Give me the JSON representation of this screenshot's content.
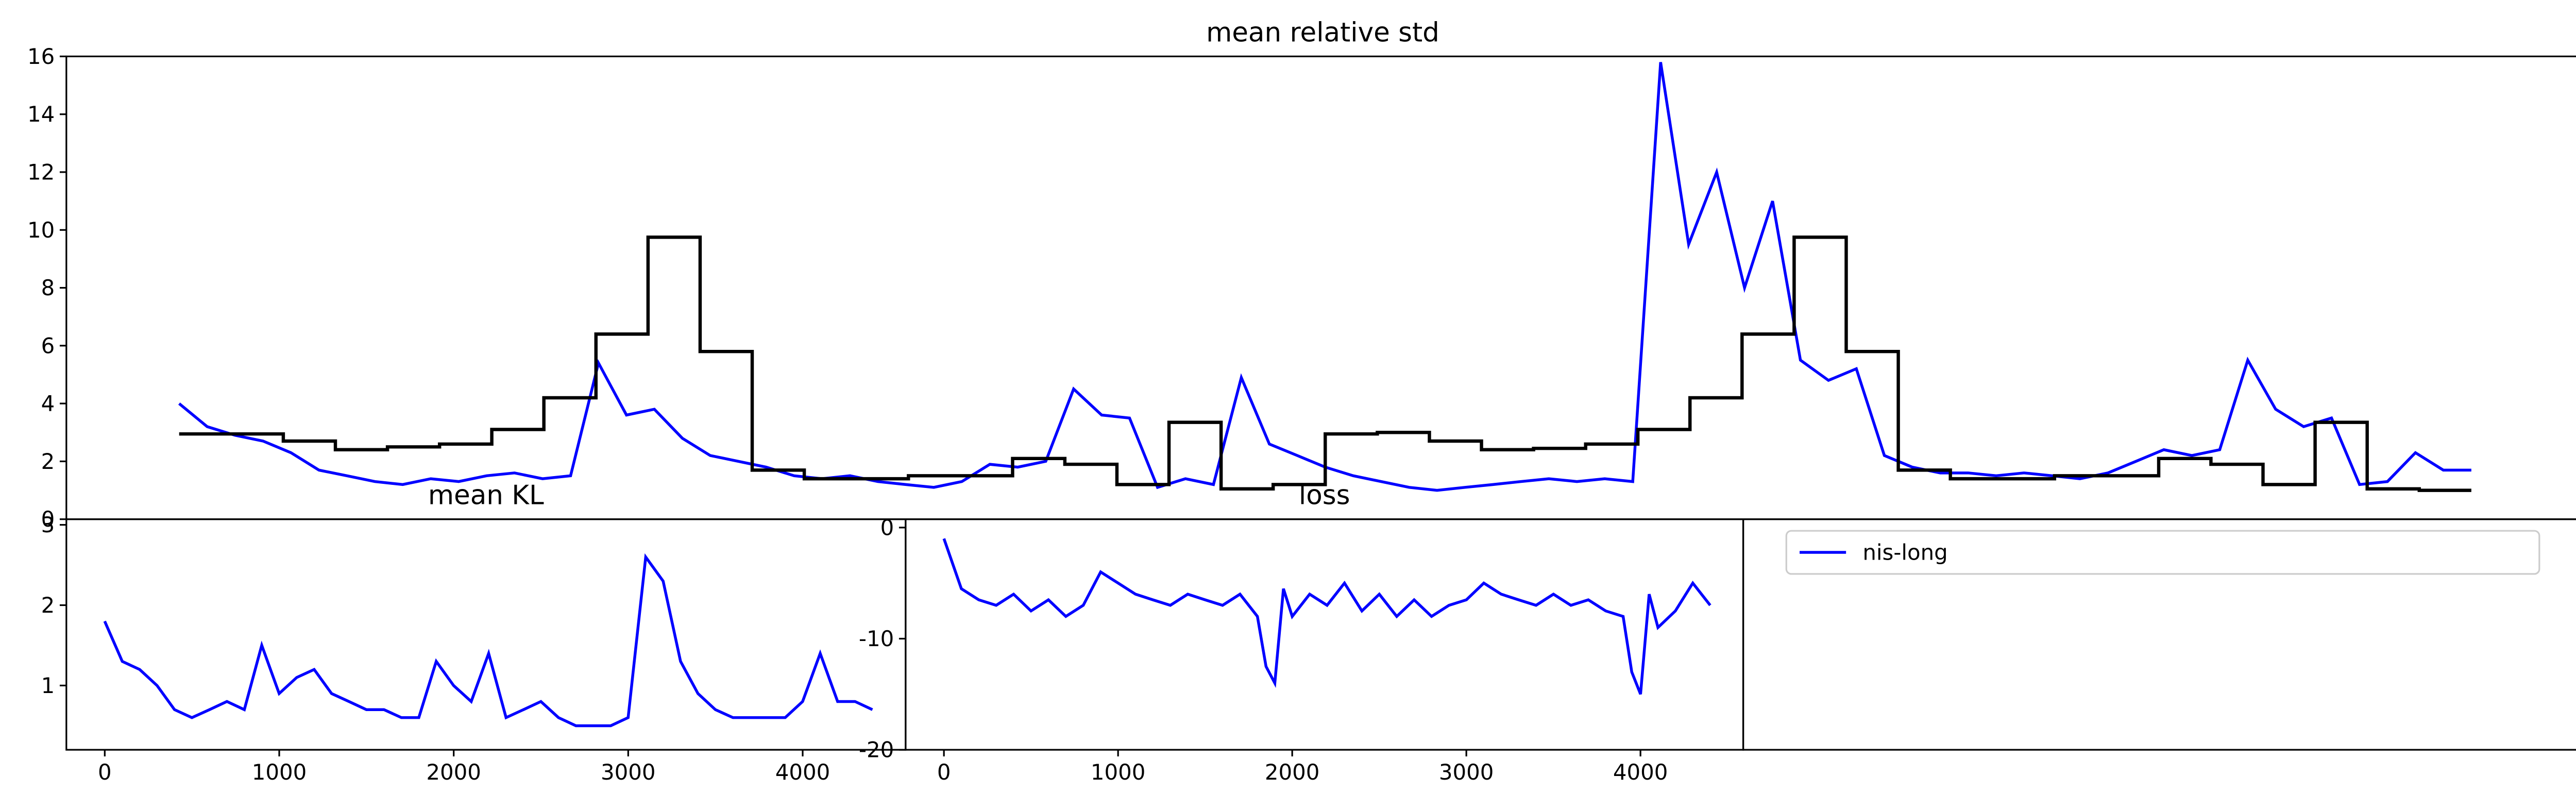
{
  "chart_data": [
    {
      "type": "line",
      "title": "mean relative std",
      "ylim": [
        0,
        16
      ],
      "yticks": [
        0,
        2,
        4,
        6,
        8,
        10,
        12,
        14,
        16
      ],
      "series": [
        {
          "name": "nis-long",
          "color": "#0000ff",
          "values": [
            4.0,
            3.2,
            2.9,
            2.7,
            2.3,
            1.7,
            1.5,
            1.3,
            1.2,
            1.4,
            1.3,
            1.5,
            1.6,
            1.4,
            1.5,
            5.4,
            3.6,
            3.8,
            2.8,
            2.2,
            2.0,
            1.8,
            1.5,
            1.4,
            1.5,
            1.3,
            1.2,
            1.1,
            1.3,
            1.9,
            1.8,
            2.0,
            4.5,
            3.6,
            3.5,
            1.1,
            1.4,
            1.2,
            4.9,
            2.6,
            2.2,
            1.8,
            1.5,
            1.3,
            1.1,
            1.0,
            1.1,
            1.2,
            1.3,
            1.4,
            1.3,
            1.4,
            1.3,
            15.8,
            9.5,
            12,
            8,
            11,
            5.5,
            4.8,
            5.2,
            2.2,
            1.8,
            1.6,
            1.6,
            1.5,
            1.6,
            1.5,
            1.4,
            1.6,
            2.0,
            2.4,
            2.2,
            2.4,
            5.5,
            3.8,
            3.2,
            3.5,
            1.2,
            1.3,
            2.3,
            1.7,
            1.7
          ]
        },
        {
          "color": "#000000",
          "values": [
            2.95,
            2.95,
            2.7,
            2.4,
            2.5,
            2.6,
            3.1,
            4.2,
            6.4,
            9.75,
            5.8,
            1.7,
            1.4,
            1.4,
            1.5,
            1.5,
            2.1,
            1.9,
            1.2,
            3.35,
            1.05,
            1.2,
            2.95,
            3.0,
            2.7,
            2.4,
            2.45,
            2.6,
            3.1,
            4.2,
            6.4,
            9.75,
            5.8,
            1.7,
            1.4,
            1.4,
            1.5,
            1.5,
            2.1,
            1.9,
            1.2,
            3.35,
            1.05,
            1.0
          ]
        }
      ]
    },
    {
      "type": "line",
      "title": "mean KL",
      "xlim": [
        -220,
        4590
      ],
      "xticks": [
        0,
        1000,
        2000,
        3000,
        4000
      ],
      "ylim": [
        0.2,
        3.07
      ],
      "yticks": [
        1,
        2,
        3
      ],
      "x": [
        0,
        100,
        200,
        300,
        400,
        500,
        600,
        700,
        800,
        900,
        1000,
        1100,
        1200,
        1300,
        1400,
        1500,
        1600,
        1700,
        1800,
        1900,
        2000,
        2100,
        2200,
        2300,
        2400,
        2500,
        2600,
        2700,
        2800,
        2900,
        3000,
        3100,
        3200,
        3300,
        3400,
        3500,
        3600,
        3700,
        3800,
        3900,
        4000,
        4100,
        4200,
        4300,
        4400
      ],
      "series": [
        {
          "color": "#0000ff",
          "values": [
            1.8,
            1.3,
            1.2,
            1.0,
            0.7,
            0.6,
            0.7,
            0.8,
            0.7,
            1.5,
            0.9,
            1.1,
            1.2,
            0.9,
            0.8,
            0.7,
            0.7,
            0.6,
            0.6,
            1.3,
            1.0,
            0.8,
            1.4,
            0.6,
            0.7,
            0.8,
            0.6,
            0.5,
            0.5,
            0.5,
            0.6,
            2.6,
            2.3,
            1.3,
            0.9,
            0.7,
            0.6,
            0.6,
            0.6,
            0.6,
            0.8,
            1.4,
            0.8,
            0.8,
            0.7
          ]
        }
      ]
    },
    {
      "type": "line",
      "title": "loss",
      "xlim": [
        -220,
        4590
      ],
      "xticks": [
        0,
        1000,
        2000,
        3000,
        4000
      ],
      "ylim": [
        -20,
        0.75
      ],
      "yticks": [
        -20,
        -10,
        0
      ],
      "x": [
        0,
        100,
        200,
        300,
        400,
        500,
        600,
        700,
        800,
        900,
        1000,
        1100,
        1200,
        1300,
        1400,
        1500,
        1600,
        1700,
        1800,
        1850,
        1900,
        1950,
        2000,
        2100,
        2200,
        2300,
        2400,
        2500,
        2600,
        2700,
        2800,
        2900,
        3000,
        3100,
        3200,
        3300,
        3400,
        3500,
        3600,
        3700,
        3800,
        3900,
        3950,
        4000,
        4050,
        4100,
        4200,
        4300,
        4400
      ],
      "series": [
        {
          "color": "#0000ff",
          "values": [
            -1,
            -5.5,
            -6.5,
            -7,
            -6,
            -7.5,
            -6.5,
            -8,
            -7,
            -4,
            -5,
            -6,
            -6.5,
            -7,
            -6,
            -6.5,
            -7,
            -6,
            -8,
            -12.5,
            -14,
            -5.5,
            -8,
            -6,
            -7,
            -5,
            -7.5,
            -6,
            -8,
            -6.5,
            -8,
            -7,
            -6.5,
            -5,
            -6,
            -6.5,
            -7,
            -6,
            -7,
            -6.5,
            -7.5,
            -8,
            -13,
            -15,
            -6,
            -9,
            -7.5,
            -5,
            -7
          ]
        }
      ]
    },
    {
      "type": "legend"
    }
  ]
}
